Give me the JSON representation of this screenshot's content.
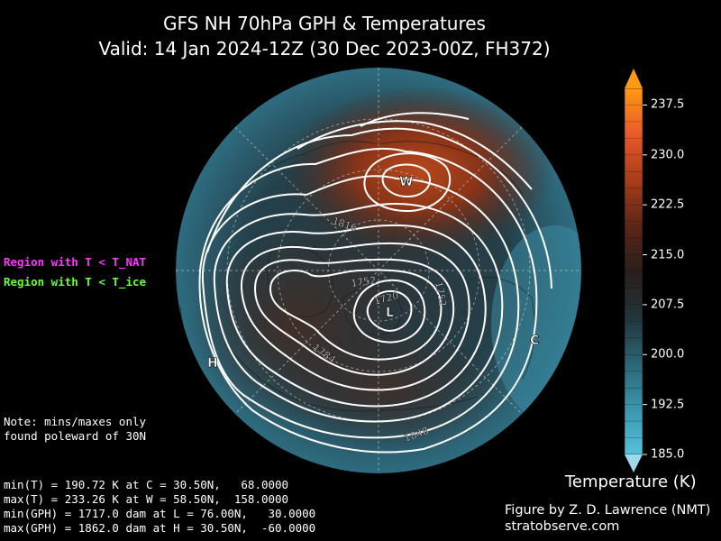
{
  "title": {
    "line1": "GFS NH 70hPa GPH & Temperatures",
    "line2": "Valid: 14 Jan 2024-12Z  (30 Dec 2023-00Z, FH372)"
  },
  "legend": {
    "nat_label": "Region with T < T_NAT",
    "ice_label": "Region with T < T_ice",
    "nat_color": "#ff33ff",
    "ice_color": "#66ff33"
  },
  "note": {
    "line1": "Note: mins/maxes only",
    "line2": "found poleward of 30N"
  },
  "stats": {
    "min_t": "min(T) = 190.72 K at C = 30.50N,   68.0000",
    "max_t": "max(T) = 233.26 K at W = 58.50N,  158.0000",
    "min_gph": "min(GPH) = 1717.0 dam at L = 76.00N,   30.0000",
    "max_gph": "max(GPH) = 1862.0 dam at H = 30.50N,  -60.0000"
  },
  "credit": {
    "line1": "Figure by Z. D. Lawrence (NMT)",
    "line2": "stratobserve.com"
  },
  "colorbar": {
    "title": "Temperature (K)",
    "min": 185.0,
    "max": 240.0,
    "ticks": [
      "185.0",
      "192.5",
      "200.0",
      "207.5",
      "215.0",
      "222.5",
      "230.0",
      "237.5"
    ],
    "tick_values": [
      185.0,
      192.5,
      200.0,
      207.5,
      215.0,
      222.5,
      230.0,
      237.5
    ],
    "colors": [
      "#56c2dc",
      "#3a95ad",
      "#2a6576",
      "#22343a",
      "#2a1e1a",
      "#5c2616",
      "#a83d18",
      "#e9592a",
      "#ff9a10"
    ]
  },
  "map": {
    "markers": {
      "W": "W",
      "L": "L",
      "H": "H",
      "C": "C"
    },
    "contour_labels": [
      "1816",
      "1752",
      "1720",
      "1752",
      "1784",
      "1848"
    ]
  }
}
